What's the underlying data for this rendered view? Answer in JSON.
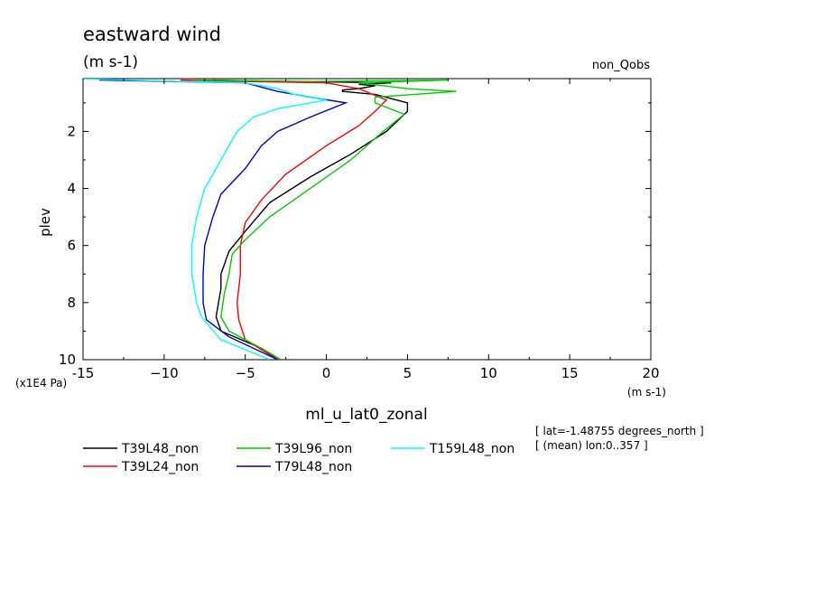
{
  "chart_data": {
    "type": "line",
    "title": "eastward wind",
    "units": "(m s-1)",
    "top_right_label": "non_Qobs",
    "xlabel": "ml_u_lat0_zonal",
    "xunits": "(m s-1)",
    "ylabel": "plev",
    "yunits": "(x1E4 Pa)",
    "xlim": [
      -15,
      20
    ],
    "ylim": [
      0.15,
      10
    ],
    "y_inverted": true,
    "x_ticks": [
      -15,
      -10,
      -5,
      0,
      5,
      10,
      15,
      20
    ],
    "x_tick_labels": [
      "-15",
      "−10",
      "−5",
      "0",
      "5",
      "10",
      "15",
      "20"
    ],
    "y_ticks": [
      2,
      4,
      6,
      8,
      10
    ],
    "y_tick_labels": [
      "2",
      "4",
      "6",
      "8",
      "10"
    ],
    "grid": false,
    "info_lines": [
      "[ lat=-1.48755 degrees_north ]",
      "[ (mean) lon:0..357 ]"
    ],
    "series": [
      {
        "name": "T39L48_non",
        "color": "#000000",
        "points": [
          [
            -7,
            0.2
          ],
          [
            -2,
            0.25
          ],
          [
            4,
            0.3
          ],
          [
            2,
            0.35
          ],
          [
            3,
            0.4
          ],
          [
            2,
            0.5
          ],
          [
            1,
            0.55
          ],
          [
            1,
            0.6
          ],
          [
            3,
            0.7
          ],
          [
            5,
            1.0
          ],
          [
            5,
            1.3
          ],
          [
            3.7,
            2.0
          ],
          [
            1.5,
            2.8
          ],
          [
            -1,
            3.6
          ],
          [
            -3.5,
            4.5
          ],
          [
            -5,
            5.5
          ],
          [
            -6,
            6.2
          ],
          [
            -6.5,
            7.0
          ],
          [
            -6.5,
            7.5
          ],
          [
            -6.8,
            8.5
          ],
          [
            -6.5,
            9.0
          ],
          [
            -4,
            9.6
          ],
          [
            -3,
            10.0
          ]
        ]
      },
      {
        "name": "T39L24_non",
        "color": "#ff0000",
        "points": [
          [
            -9,
            0.2
          ],
          [
            -5,
            0.25
          ],
          [
            0,
            0.3
          ],
          [
            2,
            0.5
          ],
          [
            3.7,
            0.9
          ],
          [
            3,
            1.3
          ],
          [
            2,
            1.8
          ],
          [
            0,
            2.5
          ],
          [
            -2.5,
            3.5
          ],
          [
            -4,
            4.4
          ],
          [
            -5,
            5.2
          ],
          [
            -5.3,
            6.0
          ],
          [
            -5.3,
            7.0
          ],
          [
            -5.5,
            8.0
          ],
          [
            -5.4,
            8.6
          ],
          [
            -5,
            9.3
          ],
          [
            -3,
            10.0
          ]
        ]
      },
      {
        "name": "T39L96_non",
        "color": "#00cc00",
        "points": [
          [
            -8,
            0.2
          ],
          [
            -1,
            0.25
          ],
          [
            7.5,
            0.2
          ],
          [
            2,
            0.3
          ],
          [
            5,
            0.5
          ],
          [
            8,
            0.6
          ],
          [
            3,
            0.8
          ],
          [
            3,
            1.0
          ],
          [
            4.8,
            1.4
          ],
          [
            3.5,
            2.0
          ],
          [
            1.5,
            3.0
          ],
          [
            -1,
            4.0
          ],
          [
            -3.5,
            5.0
          ],
          [
            -5,
            5.8
          ],
          [
            -5.8,
            6.3
          ],
          [
            -6,
            7.0
          ],
          [
            -6.3,
            7.7
          ],
          [
            -6.5,
            8.5
          ],
          [
            -6,
            9.0
          ],
          [
            -4,
            9.6
          ],
          [
            -2.8,
            10.0
          ]
        ]
      },
      {
        "name": "T79L48_non",
        "color": "#0000cc",
        "points": [
          [
            -14,
            0.2
          ],
          [
            -5,
            0.3
          ],
          [
            -3,
            0.6
          ],
          [
            -1,
            0.8
          ],
          [
            1.2,
            1.0
          ],
          [
            -1,
            1.5
          ],
          [
            -3,
            2.0
          ],
          [
            -4,
            2.5
          ],
          [
            -5,
            3.3
          ],
          [
            -6.5,
            4.2
          ],
          [
            -7,
            5.0
          ],
          [
            -7.5,
            6.0
          ],
          [
            -7.6,
            7.0
          ],
          [
            -7.6,
            8.0
          ],
          [
            -7.4,
            8.6
          ],
          [
            -6,
            9.2
          ],
          [
            -3,
            10.0
          ]
        ]
      },
      {
        "name": "T159L48_non",
        "color": "#00ffff",
        "points": [
          [
            -15.5,
            0.15
          ],
          [
            -9,
            0.25
          ],
          [
            -5,
            0.3
          ],
          [
            -3,
            0.5
          ],
          [
            -2,
            0.7
          ],
          [
            0,
            0.9
          ],
          [
            -3,
            1.2
          ],
          [
            -4.5,
            1.5
          ],
          [
            -5.5,
            2.0
          ],
          [
            -6,
            2.5
          ],
          [
            -6.5,
            3.0
          ],
          [
            -7.5,
            4.0
          ],
          [
            -8,
            5.0
          ],
          [
            -8.3,
            6.0
          ],
          [
            -8.3,
            7.0
          ],
          [
            -8,
            8.0
          ],
          [
            -7.7,
            8.5
          ],
          [
            -6.5,
            9.3
          ],
          [
            -3.5,
            10.0
          ]
        ]
      }
    ]
  }
}
